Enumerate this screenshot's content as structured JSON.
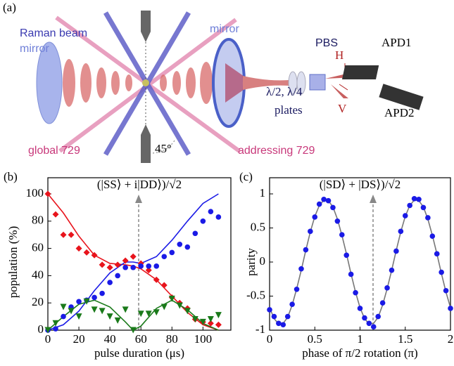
{
  "panel_a": {
    "label": "(a)",
    "raman_beam": "Raman beam",
    "mirror_left": "mirror",
    "mirror_right": "mirror",
    "pbs": "PBS",
    "h": "H",
    "v": "V",
    "apd1": "APD1",
    "apd2": "APD2",
    "plates_1": "λ/2, λ/4",
    "plates_2": "plates",
    "global": "global 729",
    "addressing": "addressing 729",
    "angle": "45°"
  },
  "chart_data": [
    {
      "type": "scatter",
      "panel_label": "(b)",
      "annotation": "(|SS⟩ + i|DD⟩)/√2",
      "xlabel": "pulse duration (μs)",
      "ylabel": "population (%)",
      "xlim": [
        0,
        118
      ],
      "xticks": [
        0,
        20,
        40,
        60,
        80,
        100
      ],
      "ylim": [
        0,
        100
      ],
      "yticks": [
        0,
        20,
        40,
        60,
        80,
        100
      ],
      "x": [
        0,
        5,
        10,
        15,
        20,
        25,
        30,
        35,
        40,
        45,
        50,
        55,
        60,
        65,
        70,
        75,
        80,
        85,
        90,
        95,
        100,
        105,
        110
      ],
      "series": [
        {
          "color": "#e8141c",
          "marker": "diamond",
          "values": [
            100,
            85,
            70,
            70,
            60,
            57,
            55,
            48,
            46,
            48,
            51,
            54,
            49,
            44,
            37,
            33,
            24,
            20,
            16,
            8,
            6,
            5,
            4
          ]
        },
        {
          "color": "#1a1ae6",
          "marker": "circle",
          "values": [
            0,
            1,
            10,
            17,
            21,
            22,
            24,
            27,
            35,
            40,
            46,
            46,
            47,
            47,
            47,
            54,
            57,
            63,
            61,
            71,
            80,
            87,
            83
          ]
        },
        {
          "color": "#1a7a1a",
          "marker": "triangle",
          "values": [
            0,
            5,
            17,
            14,
            10,
            21,
            15,
            14,
            10,
            7,
            15,
            0,
            12,
            12,
            13,
            17,
            23,
            18,
            14,
            8,
            6,
            8,
            11
          ]
        }
      ],
      "fit_x": [
        0,
        10,
        20,
        30,
        40,
        50,
        55,
        60,
        70,
        80,
        90,
        100,
        110
      ],
      "fits": [
        {
          "color": "#e8141c",
          "values": [
            100,
            86,
            69,
            55,
            49,
            48,
            47,
            45,
            37,
            25,
            13,
            4,
            0
          ]
        },
        {
          "color": "#1a1ae6",
          "values": [
            0,
            4,
            14,
            29,
            42,
            50,
            50,
            49,
            54,
            66,
            80,
            93,
            100
          ]
        },
        {
          "color": "#1a7a1a",
          "values": [
            0,
            10,
            19,
            22,
            17,
            6,
            0,
            3,
            16,
            22,
            15,
            5,
            0
          ]
        }
      ]
    },
    {
      "type": "scatter",
      "panel_label": "(c)",
      "annotation": "(|SD⟩ + |DS⟩)/√2",
      "xlabel": "phase of π/2 rotation (π)",
      "ylabel": "parity",
      "xlim": [
        0,
        2
      ],
      "xticks": [
        0,
        0.5,
        1,
        1.5,
        2
      ],
      "ylim": [
        -1,
        1
      ],
      "yticks": [
        -1,
        -0.5,
        0,
        0.5,
        1
      ],
      "x": [
        0,
        0.05,
        0.1,
        0.15,
        0.2,
        0.25,
        0.3,
        0.35,
        0.4,
        0.45,
        0.5,
        0.55,
        0.6,
        0.65,
        0.7,
        0.75,
        0.8,
        0.85,
        0.9,
        0.95,
        1,
        1.05,
        1.1,
        1.15,
        1.2,
        1.25,
        1.3,
        1.35,
        1.4,
        1.45,
        1.5,
        1.55,
        1.6,
        1.65,
        1.7,
        1.75,
        1.8,
        1.85,
        1.9,
        1.95,
        2
      ],
      "series": [
        {
          "color": "#1a1ae6",
          "marker": "circle",
          "values": [
            -0.7,
            -0.8,
            -0.9,
            -0.92,
            -0.8,
            -0.62,
            -0.4,
            -0.1,
            0.18,
            0.45,
            0.66,
            0.85,
            0.92,
            0.9,
            0.8,
            0.6,
            0.4,
            0.1,
            -0.18,
            -0.45,
            -0.68,
            -0.82,
            -0.9,
            -0.95,
            -0.8,
            -0.6,
            -0.38,
            -0.12,
            0.16,
            0.45,
            0.68,
            0.83,
            0.93,
            0.92,
            0.8,
            0.65,
            0.38,
            0.12,
            -0.15,
            -0.42,
            -0.68
          ]
        }
      ],
      "fit_x": [
        0,
        0.05,
        0.1,
        0.15,
        0.2,
        0.25,
        0.3,
        0.35,
        0.4,
        0.45,
        0.5,
        0.55,
        0.6,
        0.65,
        0.7,
        0.75,
        0.8,
        0.85,
        0.9,
        0.95,
        1,
        1.05,
        1.1,
        1.15,
        1.2,
        1.25,
        1.3,
        1.35,
        1.4,
        1.45,
        1.5,
        1.55,
        1.6,
        1.65,
        1.7,
        1.75,
        1.8,
        1.85,
        1.9,
        1.95,
        2
      ],
      "fits": [
        {
          "color": "#777777",
          "values": [
            -0.67,
            -0.83,
            -0.91,
            -0.9,
            -0.81,
            -0.63,
            -0.39,
            -0.12,
            0.17,
            0.44,
            0.67,
            0.83,
            0.91,
            0.9,
            0.81,
            0.63,
            0.39,
            0.12,
            -0.17,
            -0.44,
            -0.67,
            -0.83,
            -0.91,
            -0.9,
            -0.81,
            -0.63,
            -0.39,
            -0.12,
            0.17,
            0.44,
            0.67,
            0.83,
            0.91,
            0.9,
            0.81,
            0.63,
            0.39,
            0.12,
            -0.17,
            -0.44,
            -0.67
          ]
        }
      ]
    }
  ]
}
